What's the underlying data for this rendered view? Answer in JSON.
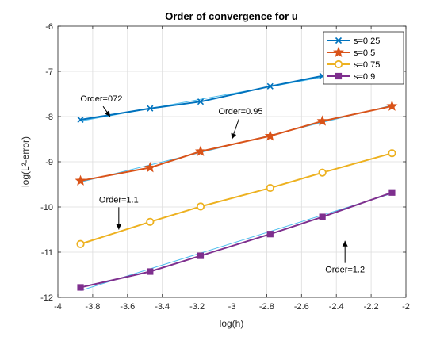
{
  "chart_data": {
    "type": "line",
    "title": "Order of convergence for u",
    "xlabel": "log(h)",
    "ylabel": "log(L²-error)",
    "xlim": [
      -4,
      -2
    ],
    "ylim": [
      -12,
      -6
    ],
    "xticks": [
      -4,
      -3.8,
      -3.6,
      -3.4,
      -3.2,
      -3,
      -2.8,
      -2.6,
      -2.4,
      -2.2,
      -2
    ],
    "xtick_labels": [
      "-4",
      "-3.8",
      "-3.6",
      "-3.4",
      "-3.2",
      "-3",
      "-2.8",
      "-2.6",
      "-2.4",
      "-2.2",
      "-2"
    ],
    "yticks": [
      -12,
      -11,
      -10,
      -9,
      -8,
      -7,
      -6
    ],
    "ytick_labels": [
      "-12",
      "-11",
      "-10",
      "-9",
      "-8",
      "-7",
      "-6"
    ],
    "grid": true,
    "legend_position": "top-right",
    "x": [
      -3.87,
      -3.47,
      -3.18,
      -2.78,
      -2.48,
      -2.08
    ],
    "series": [
      {
        "name": "s=0.25",
        "marker": "x",
        "color": "#0072BD",
        "values": [
          -8.07,
          -7.82,
          -7.67,
          -7.33,
          -7.1,
          -6.9
        ]
      },
      {
        "name": "s=0.5",
        "marker": "star",
        "color": "#D95319",
        "values": [
          -9.42,
          -9.13,
          -8.77,
          -8.43,
          -8.1,
          -7.77
        ]
      },
      {
        "name": "s=0.75",
        "marker": "circle",
        "color": "#EDB120",
        "values": [
          -10.82,
          -10.33,
          -9.99,
          -9.58,
          -9.24,
          -8.81
        ]
      },
      {
        "name": "s=0.9",
        "marker": "square",
        "color": "#7E2F8E",
        "values": [
          -11.78,
          -11.43,
          -11.08,
          -10.6,
          -10.22,
          -9.68
        ]
      }
    ],
    "reference_fits": [
      {
        "color": "#4DBEEE",
        "x": [
          -3.87,
          -2.08
        ],
        "y": [
          -8.1,
          -6.85
        ]
      },
      {
        "color": "#4DBEEE",
        "x": [
          -3.87,
          -2.08
        ],
        "y": [
          -9.45,
          -7.75
        ]
      },
      {
        "color": "#4DBEEE",
        "x": [
          -3.87,
          -2.08
        ],
        "y": [
          -11.85,
          -9.7
        ]
      }
    ],
    "annotations": [
      {
        "text": "Order=072",
        "x": -3.75,
        "y": -7.67,
        "arrow_to": [
          -3.7,
          -8.0
        ]
      },
      {
        "text": "Order=0.95",
        "x": -2.95,
        "y": -7.95,
        "arrow_to": [
          -3.0,
          -8.5
        ]
      },
      {
        "text": "Order=1.1",
        "x": -3.65,
        "y": -9.9,
        "arrow_to": [
          -3.65,
          -10.5
        ]
      },
      {
        "text": "Order=1.2",
        "x": -2.35,
        "y": -11.45,
        "arrow_to": [
          -2.35,
          -10.75
        ]
      }
    ]
  }
}
